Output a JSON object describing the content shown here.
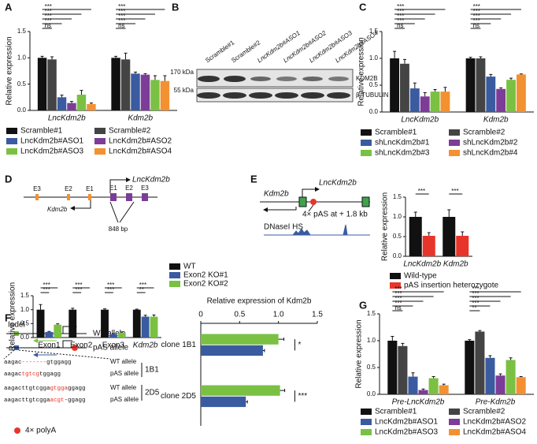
{
  "panel_labels": [
    "A",
    "B",
    "C",
    "D",
    "E",
    "F",
    "G"
  ],
  "chart_data": [
    {
      "type": "bar",
      "ylabel": "Relative expression",
      "categories": [
        "LncKdm2b",
        "Kdm2b"
      ],
      "ylim": [
        0,
        1.5
      ],
      "yticks": [
        {
          "value": 0,
          "label": "0.0"
        },
        0.5,
        {
          "value": 1,
          "label": "1.0"
        },
        1.5
      ],
      "series": [
        {
          "name": "Scramble#1",
          "color": "#111111",
          "values": [
            1.0,
            1.0
          ],
          "errors": [
            0.03,
            0.03
          ]
        },
        {
          "name": "Scramble#2",
          "color": "#444444",
          "values": [
            0.97,
            0.97
          ],
          "errors": [
            0.05,
            0.12
          ]
        },
        {
          "name": "LncKdm2b#ASO1",
          "color": "#3a5ba0",
          "values": [
            0.25,
            0.7
          ],
          "errors": [
            0.04,
            0.03
          ]
        },
        {
          "name": "LncKdm2b#ASO2",
          "color": "#7d3c98",
          "values": [
            0.14,
            0.68
          ],
          "errors": [
            0.03,
            0.02
          ]
        },
        {
          "name": "LncKdm2b#ASO3",
          "color": "#7ac143",
          "values": [
            0.3,
            0.58
          ],
          "errors": [
            0.08,
            0.08
          ]
        },
        {
          "name": "LncKdm2b#ASO4",
          "color": "#f39131",
          "values": [
            0.12,
            0.56
          ],
          "errors": [
            0.02,
            0.1
          ]
        }
      ],
      "significance": [
        [
          "ns",
          "***",
          "***",
          "***",
          "***"
        ],
        [
          "ns",
          "***",
          "***",
          "***",
          "***"
        ]
      ]
    },
    {
      "type": "bar",
      "ylabel": "Relative expression",
      "categories": [
        "LncKdm2b",
        "Kdm2b"
      ],
      "ylim": [
        0,
        1.5
      ],
      "yticks": [
        {
          "value": 0,
          "label": "0.0"
        },
        0.5,
        {
          "value": 1,
          "label": "1.0"
        },
        1.5
      ],
      "series": [
        {
          "name": "Scramble#1",
          "color": "#111111",
          "values": [
            1.0,
            1.0
          ],
          "errors": [
            0.13,
            0.02
          ]
        },
        {
          "name": "Scramble#2",
          "color": "#444444",
          "values": [
            0.9,
            1.0
          ],
          "errors": [
            0.08,
            0.03
          ]
        },
        {
          "name": "shLncKdm2b#1",
          "color": "#3a5ba0",
          "values": [
            0.44,
            0.66
          ],
          "errors": [
            0.1,
            0.04
          ]
        },
        {
          "name": "shLncKdm2b#2",
          "color": "#7d3c98",
          "values": [
            0.29,
            0.43
          ],
          "errors": [
            0.07,
            0.02
          ]
        },
        {
          "name": "shLncKdm2b#3",
          "color": "#7ac143",
          "values": [
            0.38,
            0.6
          ],
          "errors": [
            0.04,
            0.03
          ]
        },
        {
          "name": "shLncKdm2b#4",
          "color": "#f39131",
          "values": [
            0.38,
            0.7
          ],
          "errors": [
            0.08,
            0.01
          ]
        }
      ],
      "significance": [
        [
          "ns",
          "***",
          "***",
          "***",
          "***"
        ],
        [
          "ns",
          "***",
          "***",
          "***",
          "***"
        ]
      ]
    },
    {
      "type": "bar",
      "ylabel": "Relative expression",
      "categories": [
        "Exon1",
        "Exon2",
        "Exon3",
        "Kdm2b"
      ],
      "ylim": [
        0,
        1.5
      ],
      "yticks": [
        {
          "value": 0,
          "label": "0.0"
        },
        0.5,
        {
          "value": 1,
          "label": "1.0"
        },
        1.5
      ],
      "series": [
        {
          "name": "WT",
          "color": "#111111",
          "values": [
            1.0,
            1.0,
            1.0,
            1.0
          ],
          "errors": [
            0.18,
            0.05,
            0.03,
            0.02
          ]
        },
        {
          "name": "Exon2 KO#1",
          "color": "#3a5ba0",
          "values": [
            0.2,
            0.0,
            0.12,
            0.75
          ],
          "errors": [
            0.02,
            0.0,
            0.02,
            0.05
          ]
        },
        {
          "name": "Exon2 KO#2",
          "color": "#7ac143",
          "values": [
            0.46,
            0.0,
            0.17,
            0.75
          ],
          "errors": [
            0.03,
            0.0,
            0.03,
            0.06
          ]
        }
      ],
      "significance": [
        [
          "***",
          "***"
        ],
        [
          "***",
          "***"
        ],
        [
          "***",
          "***"
        ],
        [
          "**",
          "***"
        ]
      ]
    },
    {
      "type": "bar",
      "ylabel": "Relative expression",
      "categories": [
        "LncKdm2b",
        "Kdm2b"
      ],
      "ylim": [
        0,
        1.5
      ],
      "yticks": [
        {
          "value": 0,
          "label": "0.0"
        },
        0.5,
        {
          "value": 1,
          "label": "1.0"
        },
        1.5
      ],
      "series": [
        {
          "name": "Wild-type",
          "color": "#111111",
          "values": [
            1.0,
            1.0
          ],
          "errors": [
            0.12,
            0.18
          ]
        },
        {
          "name": "pAS insertion heterozygote",
          "color": "#e8352b",
          "values": [
            0.52,
            0.52
          ],
          "errors": [
            0.08,
            0.1
          ]
        }
      ],
      "significance": [
        [
          "***"
        ],
        [
          "***"
        ]
      ]
    },
    {
      "type": "barh",
      "title": "Relative expression of Kdm2b",
      "categories": [
        "clone 1B1",
        "clone 2D5"
      ],
      "xlim": [
        0,
        1.5
      ],
      "xticks": [
        0,
        0.5,
        {
          "value": 1,
          "label": "1.0"
        },
        1.5
      ],
      "series": [
        {
          "color": "#7ac143",
          "values": [
            1.0,
            1.02
          ],
          "errors": [
            0.07,
            0.06
          ]
        },
        {
          "color": "#3a5ba0",
          "values": [
            0.8,
            0.58
          ],
          "errors": [
            0.02,
            0.02
          ]
        }
      ],
      "significance": [
        [
          "*"
        ],
        [
          "***"
        ]
      ]
    },
    {
      "type": "bar",
      "ylabel": "Relative expression",
      "categories": [
        "Pre-LncKdm2b",
        "Pre-Kdm2b"
      ],
      "ylim": [
        0,
        1.5
      ],
      "yticks": [
        {
          "value": 0,
          "label": "0.0"
        },
        0.5,
        {
          "value": 1,
          "label": "1.0"
        },
        1.5
      ],
      "series": [
        {
          "name": "Scramble#1",
          "color": "#111111",
          "values": [
            1.0,
            1.0
          ],
          "errors": [
            0.08,
            0.02
          ]
        },
        {
          "name": "Scramble#2",
          "color": "#444444",
          "values": [
            0.9,
            1.17
          ],
          "errors": [
            0.05,
            0.02
          ]
        },
        {
          "name": "LncKdm2b#ASO1",
          "color": "#3a5ba0",
          "values": [
            0.33,
            0.68
          ],
          "errors": [
            0.07,
            0.04
          ]
        },
        {
          "name": "LncKdm2b#ASO2",
          "color": "#7d3c98",
          "values": [
            0.08,
            0.35
          ],
          "errors": [
            0.02,
            0.03
          ]
        },
        {
          "name": "LncKdm2b#ASO3",
          "color": "#7ac143",
          "values": [
            0.3,
            0.64
          ],
          "errors": [
            0.03,
            0.04
          ]
        },
        {
          "name": "LncKdm2b#ASO4",
          "color": "#f39131",
          "values": [
            0.17,
            0.32
          ],
          "errors": [
            0.02,
            0.01
          ]
        }
      ],
      "significance": [
        [
          "ns",
          "***",
          "***",
          "***",
          "***"
        ],
        [
          "**",
          "***",
          "***",
          "***",
          "***"
        ]
      ]
    }
  ],
  "blot": {
    "lanes": [
      "Scramble#1",
      "Scramble#2",
      "LncKdm2b#ASO1",
      "LncKdm2b#ASO2",
      "LncKdm2b#ASO3",
      "LncKdm2b#ASO4"
    ],
    "markers": [
      "170 kDa",
      "55 kDa"
    ],
    "proteins": [
      "KDM2B",
      "β-TUBULIN"
    ]
  },
  "locus_d": {
    "exons_kdm2b": [
      "E3",
      "E2",
      "E1"
    ],
    "exons_lnc": [
      "E1",
      "E2",
      "E3"
    ],
    "lnc_gene": "LncKdm2b",
    "gene": "Kdm2b",
    "deletion": "848 bp"
  },
  "locus_e": {
    "gene": "Kdm2b",
    "lnc_gene": "LncKdm2b",
    "insertion": "4× pAS at + 1.8 kb",
    "track": "DNaseI HS"
  },
  "alleles_f": {
    "indel": "Indel",
    "wt": "WT allele",
    "pas": "pAS allele",
    "sequences": [
      [
        "aagac",
        "-------",
        "gtggagg"
      ],
      [
        "aagac",
        "tgtcg",
        "tggagg"
      ],
      [
        "aagacttgtcgga",
        "gtgga",
        "ggagg"
      ],
      [
        "aagacttgtcgga",
        "acgt",
        "-ggagg"
      ]
    ],
    "sequence_alleles": [
      "WT allele",
      "pAS allele",
      "WT allele",
      "pAS allele"
    ],
    "clones": [
      "1B1",
      "2D5"
    ],
    "polya": "4× polyA"
  }
}
